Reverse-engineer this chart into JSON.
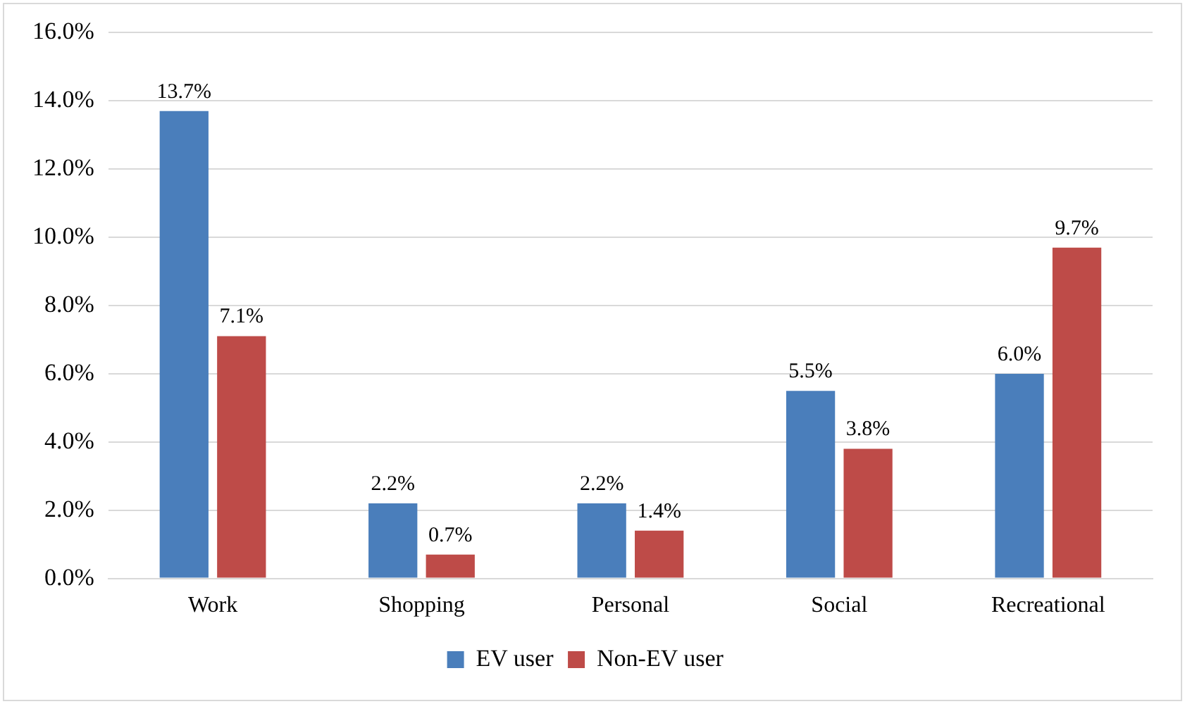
{
  "chart_data": {
    "type": "bar",
    "categories": [
      "Work",
      "Shopping",
      "Personal",
      "Social",
      "Recreational"
    ],
    "series": [
      {
        "name": "EV user",
        "color": "#4a7ebb",
        "values": [
          13.7,
          2.2,
          2.2,
          5.5,
          6.0
        ],
        "value_labels": [
          "13.7%",
          "2.2%",
          "2.2%",
          "5.5%",
          "6.0%"
        ]
      },
      {
        "name": "Non-EV user",
        "color": "#be4b48",
        "values": [
          7.1,
          0.7,
          1.4,
          3.8,
          9.7
        ],
        "value_labels": [
          "7.1%",
          "0.7%",
          "1.4%",
          "3.8%",
          "9.7%"
        ]
      }
    ],
    "ylim": [
      0,
      16
    ],
    "yticks": [
      {
        "value": 0,
        "label": "0.0%"
      },
      {
        "value": 2,
        "label": "2.0%"
      },
      {
        "value": 4,
        "label": "4.0%"
      },
      {
        "value": 6,
        "label": "6.0%"
      },
      {
        "value": 8,
        "label": "8.0%"
      },
      {
        "value": 10,
        "label": "10.0%"
      },
      {
        "value": 12,
        "label": "12.0%"
      },
      {
        "value": 14,
        "label": "14.0%"
      },
      {
        "value": 16,
        "label": "16.0%"
      }
    ],
    "grid": "y",
    "legend": "bottom"
  }
}
